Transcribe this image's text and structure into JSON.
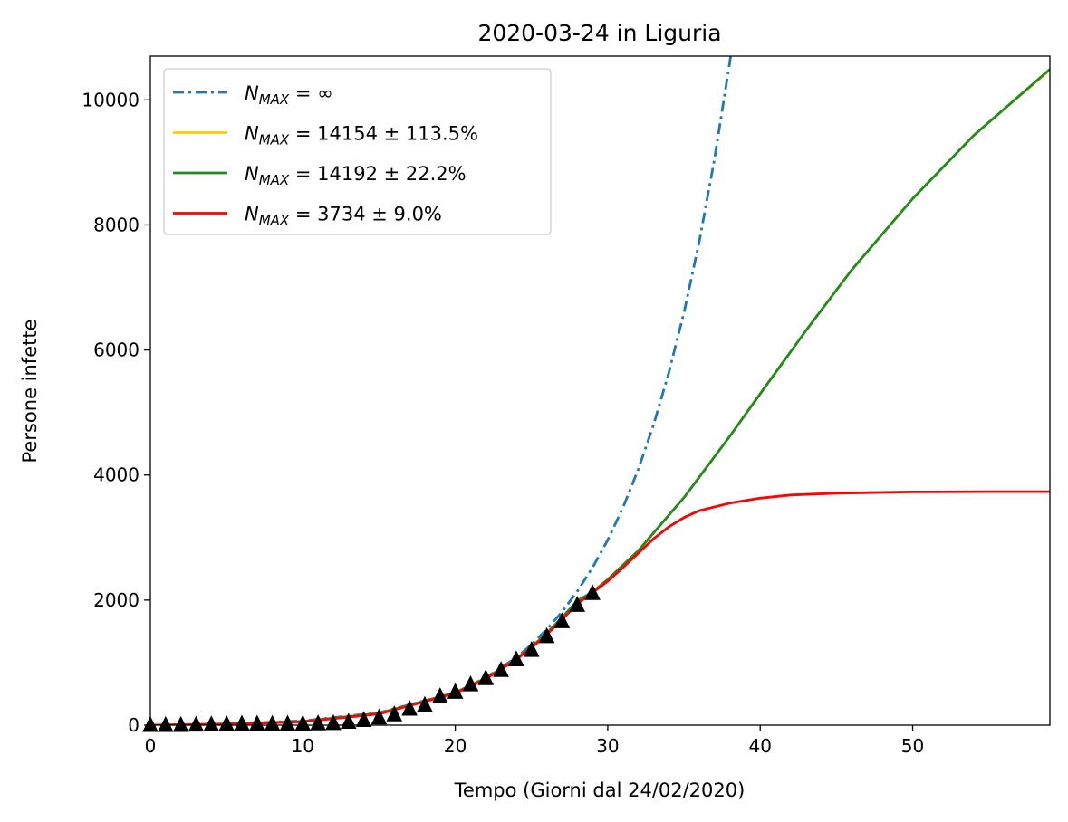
{
  "chart_data": {
    "type": "line",
    "title": "2020-03-24 in Liguria",
    "xlabel": "Tempo (Giorni dal 24/02/2020)",
    "ylabel": "Persone infette",
    "xlim": [
      0,
      59
    ],
    "ylim": [
      0,
      10700
    ],
    "xticks": [
      0,
      10,
      20,
      30,
      40,
      50
    ],
    "yticks": [
      0,
      2000,
      4000,
      6000,
      8000,
      10000
    ],
    "grid": false,
    "legend_position": "top-left",
    "series": [
      {
        "name_prefix": "N",
        "name_sub": "MAX",
        "name_rest": " = ∞",
        "style": "dashdot",
        "color": "#1f77b4",
        "x": [
          0,
          5,
          10,
          15,
          20,
          22,
          24,
          25,
          26,
          27,
          28,
          29,
          30,
          31,
          32,
          33,
          34,
          35,
          36,
          37,
          38,
          38.5
        ],
        "y": [
          0,
          20,
          70,
          200,
          520,
          760,
          1080,
          1290,
          1530,
          1810,
          2140,
          2520,
          2960,
          3480,
          4090,
          4800,
          5630,
          6600,
          7730,
          9050,
          10600,
          11480
        ]
      },
      {
        "name_prefix": "N",
        "name_sub": "MAX",
        "name_rest": " = 14154 ± 113.5%",
        "style": "solid",
        "color": "#ffcc00",
        "x": [
          0,
          5,
          10,
          15,
          20,
          22,
          24,
          25,
          26,
          27,
          28,
          29,
          30,
          32,
          35,
          38,
          40,
          43,
          46,
          50,
          54,
          59
        ],
        "y": [
          0,
          20,
          60,
          190,
          520,
          750,
          1060,
          1250,
          1470,
          1720,
          1990,
          2130,
          2330,
          2790,
          3640,
          4620,
          5300,
          6310,
          7280,
          8420,
          9430,
          10480
        ]
      },
      {
        "name_prefix": "N",
        "name_sub": "MAX",
        "name_rest": " = 14192 ± 22.2%",
        "style": "solid",
        "color": "#228b22",
        "x": [
          0,
          5,
          10,
          15,
          20,
          22,
          24,
          25,
          26,
          27,
          28,
          29,
          30,
          32,
          35,
          38,
          40,
          43,
          46,
          50,
          54,
          59
        ],
        "y": [
          0,
          20,
          60,
          190,
          520,
          750,
          1060,
          1250,
          1470,
          1720,
          1990,
          2130,
          2330,
          2790,
          3640,
          4620,
          5300,
          6310,
          7280,
          8420,
          9430,
          10490
        ]
      },
      {
        "name_prefix": "N",
        "name_sub": "MAX",
        "name_rest": " = 3734 ± 9.0%",
        "style": "solid",
        "color": "#ff0000",
        "x": [
          0,
          5,
          10,
          15,
          20,
          22,
          24,
          25,
          26,
          27,
          28,
          29,
          30,
          31,
          32,
          33,
          34,
          35,
          36,
          38,
          40,
          42,
          45,
          50,
          55,
          59
        ],
        "y": [
          0,
          15,
          55,
          180,
          510,
          740,
          1050,
          1240,
          1450,
          1690,
          1940,
          2120,
          2300,
          2520,
          2750,
          2980,
          3170,
          3320,
          3430,
          3550,
          3630,
          3680,
          3710,
          3730,
          3734,
          3734
        ]
      }
    ],
    "observed": {
      "marker": "triangle",
      "color": "#000000",
      "x": [
        0,
        1,
        2,
        3,
        4,
        5,
        6,
        7,
        8,
        9,
        10,
        11,
        12,
        13,
        14,
        15,
        16,
        17,
        18,
        19,
        20,
        21,
        22,
        23,
        24,
        25,
        26,
        27,
        28,
        29
      ],
      "y": [
        0,
        0,
        0,
        5,
        10,
        15,
        20,
        20,
        20,
        20,
        20,
        25,
        30,
        50,
        80,
        120,
        170,
        260,
        320,
        460,
        530,
        650,
        750,
        880,
        1050,
        1200,
        1420,
        1660,
        1920,
        2110
      ]
    }
  }
}
